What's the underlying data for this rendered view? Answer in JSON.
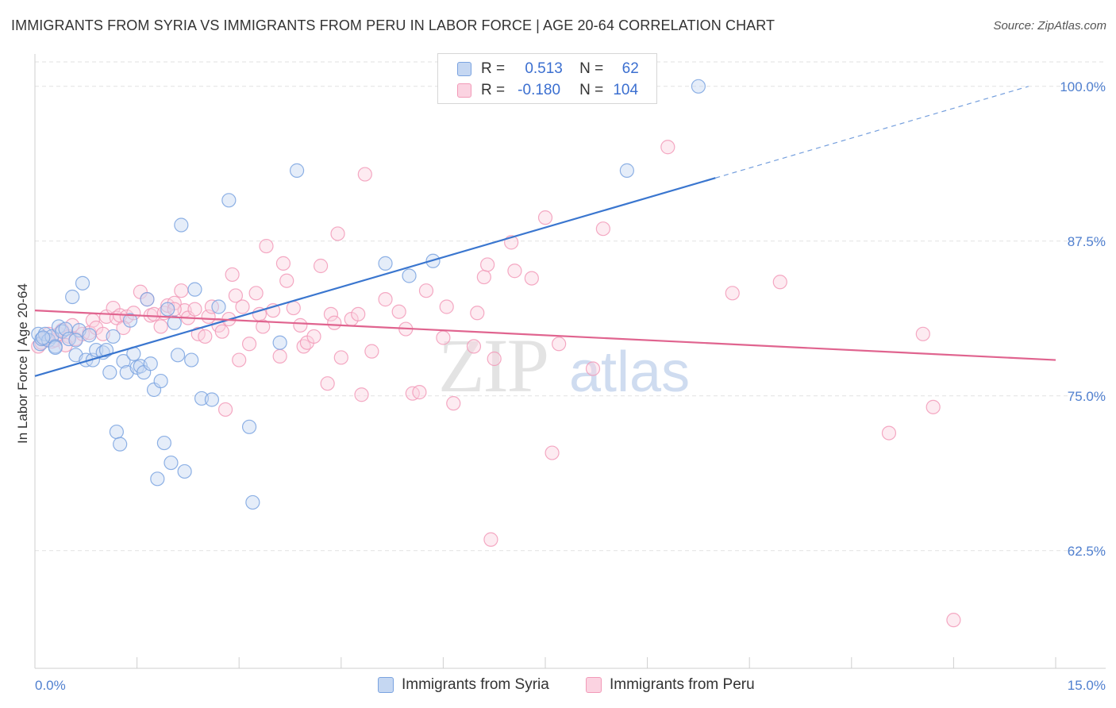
{
  "header": {
    "title": "IMMIGRANTS FROM SYRIA VS IMMIGRANTS FROM PERU IN LABOR FORCE | AGE 20-64 CORRELATION CHART",
    "source": "Source: ZipAtlas.com"
  },
  "watermark": {
    "zip": "ZIP",
    "atlas": "atlas"
  },
  "legend": {
    "syria": {
      "r_label": "R =",
      "r_value": "0.513",
      "n_label": "N =",
      "n_value": "62",
      "color": "#7aa3e0"
    },
    "peru": {
      "r_label": "R =",
      "r_value": "-0.180",
      "n_label": "N =",
      "n_value": "104",
      "color": "#f29ab8"
    }
  },
  "bottom_legend": {
    "syria_label": "Immigrants from Syria",
    "peru_label": "Immigrants from Peru"
  },
  "chart_data": {
    "type": "scatter",
    "ylabel": "In Labor Force | Age 20-64",
    "xlim": [
      0,
      15
    ],
    "ylim": [
      53,
      103
    ],
    "x_tick_labels": [
      "0.0%",
      "15.0%"
    ],
    "y_ticks": [
      62.5,
      75.0,
      87.5,
      100.0
    ],
    "y_tick_labels": [
      "62.5%",
      "75.0%",
      "87.5%",
      "100.0%"
    ],
    "grid": true,
    "legend_position": "top-center",
    "series": [
      {
        "name": "Immigrants from Syria",
        "color": "#7aa3e0",
        "line_color": "#3a76cf",
        "trend": {
          "x0": 0,
          "y0": 76.6,
          "x1": 10.0,
          "y1": 92.6,
          "x_ext": 14.6,
          "y_ext": 100.0
        },
        "points": [
          [
            0.05,
            80.0
          ],
          [
            0.08,
            79.2
          ],
          [
            0.1,
            79.6
          ],
          [
            0.15,
            80.0
          ],
          [
            0.2,
            79.5
          ],
          [
            0.25,
            79.8
          ],
          [
            0.3,
            79.0
          ],
          [
            0.35,
            80.6
          ],
          [
            0.4,
            80.2
          ],
          [
            0.45,
            80.4
          ],
          [
            0.5,
            79.6
          ],
          [
            0.55,
            83.0
          ],
          [
            0.6,
            78.3
          ],
          [
            0.65,
            80.3
          ],
          [
            0.7,
            84.1
          ],
          [
            0.75,
            77.9
          ],
          [
            0.8,
            79.9
          ],
          [
            0.85,
            77.9
          ],
          [
            0.9,
            78.7
          ],
          [
            1.0,
            78.5
          ],
          [
            1.05,
            78.7
          ],
          [
            1.15,
            79.8
          ],
          [
            1.2,
            72.1
          ],
          [
            1.25,
            71.1
          ],
          [
            1.3,
            77.8
          ],
          [
            1.35,
            76.9
          ],
          [
            1.4,
            81.1
          ],
          [
            1.45,
            78.4
          ],
          [
            1.5,
            77.3
          ],
          [
            1.55,
            77.4
          ],
          [
            1.6,
            76.9
          ],
          [
            1.65,
            82.8
          ],
          [
            1.7,
            77.6
          ],
          [
            1.75,
            75.5
          ],
          [
            1.8,
            68.3
          ],
          [
            1.85,
            76.2
          ],
          [
            1.9,
            71.2
          ],
          [
            1.95,
            82.0
          ],
          [
            2.0,
            69.6
          ],
          [
            2.05,
            80.9
          ],
          [
            2.1,
            78.3
          ],
          [
            2.15,
            88.8
          ],
          [
            2.2,
            68.9
          ],
          [
            2.3,
            77.9
          ],
          [
            2.35,
            83.6
          ],
          [
            2.45,
            74.8
          ],
          [
            2.6,
            74.7
          ],
          [
            2.7,
            82.2
          ],
          [
            2.85,
            90.8
          ],
          [
            3.15,
            72.5
          ],
          [
            3.2,
            66.4
          ],
          [
            3.6,
            79.3
          ],
          [
            3.85,
            93.2
          ],
          [
            5.15,
            85.7
          ],
          [
            5.5,
            84.7
          ],
          [
            5.85,
            85.9
          ],
          [
            8.7,
            93.2
          ],
          [
            9.75,
            100.0
          ],
          [
            0.12,
            79.7
          ],
          [
            0.3,
            78.9
          ],
          [
            0.6,
            79.5
          ],
          [
            1.1,
            76.9
          ]
        ]
      },
      {
        "name": "Immigrants from Peru",
        "color": "#f29ab8",
        "line_color": "#e0648f",
        "trend": {
          "x0": 0,
          "y0": 81.9,
          "x1": 15.0,
          "y1": 77.9
        },
        "points": [
          [
            0.05,
            79.0
          ],
          [
            0.1,
            79.3
          ],
          [
            0.15,
            79.6
          ],
          [
            0.2,
            80.0
          ],
          [
            0.25,
            79.4
          ],
          [
            0.3,
            79.5
          ],
          [
            0.35,
            80.0
          ],
          [
            0.4,
            80.3
          ],
          [
            0.5,
            79.8
          ],
          [
            0.55,
            80.7
          ],
          [
            0.6,
            79.6
          ],
          [
            0.7,
            80.0
          ],
          [
            0.8,
            80.1
          ],
          [
            0.85,
            81.1
          ],
          [
            0.9,
            80.5
          ],
          [
            1.0,
            80.0
          ],
          [
            1.05,
            81.4
          ],
          [
            1.15,
            82.1
          ],
          [
            1.2,
            81.3
          ],
          [
            1.25,
            81.5
          ],
          [
            1.35,
            81.4
          ],
          [
            1.45,
            81.7
          ],
          [
            1.55,
            83.4
          ],
          [
            1.65,
            82.8
          ],
          [
            1.7,
            81.5
          ],
          [
            1.75,
            81.6
          ],
          [
            1.85,
            80.6
          ],
          [
            1.9,
            81.7
          ],
          [
            1.95,
            82.3
          ],
          [
            2.05,
            82.5
          ],
          [
            2.15,
            83.5
          ],
          [
            2.2,
            81.9
          ],
          [
            2.25,
            81.3
          ],
          [
            2.35,
            82.0
          ],
          [
            2.4,
            80.0
          ],
          [
            2.5,
            79.8
          ],
          [
            2.55,
            81.4
          ],
          [
            2.6,
            82.2
          ],
          [
            2.7,
            80.7
          ],
          [
            2.75,
            80.2
          ],
          [
            2.8,
            73.9
          ],
          [
            2.85,
            81.2
          ],
          [
            2.9,
            84.8
          ],
          [
            2.95,
            83.1
          ],
          [
            3.0,
            77.9
          ],
          [
            3.05,
            82.2
          ],
          [
            3.15,
            79.2
          ],
          [
            3.25,
            83.3
          ],
          [
            3.3,
            81.6
          ],
          [
            3.35,
            80.6
          ],
          [
            3.4,
            87.1
          ],
          [
            3.5,
            81.9
          ],
          [
            3.6,
            78.2
          ],
          [
            3.65,
            85.7
          ],
          [
            3.7,
            84.3
          ],
          [
            3.8,
            82.1
          ],
          [
            3.9,
            80.7
          ],
          [
            3.95,
            79.0
          ],
          [
            4.0,
            79.3
          ],
          [
            4.1,
            79.8
          ],
          [
            4.2,
            85.5
          ],
          [
            4.3,
            76.0
          ],
          [
            4.35,
            81.6
          ],
          [
            4.4,
            80.9
          ],
          [
            4.45,
            88.1
          ],
          [
            4.5,
            78.1
          ],
          [
            4.65,
            81.2
          ],
          [
            4.75,
            81.6
          ],
          [
            4.8,
            75.1
          ],
          [
            4.85,
            92.9
          ],
          [
            4.95,
            78.6
          ],
          [
            5.15,
            82.8
          ],
          [
            5.35,
            81.8
          ],
          [
            5.45,
            80.4
          ],
          [
            5.55,
            75.2
          ],
          [
            5.65,
            75.3
          ],
          [
            5.75,
            83.5
          ],
          [
            6.0,
            79.7
          ],
          [
            6.05,
            82.2
          ],
          [
            6.15,
            74.4
          ],
          [
            6.45,
            79.0
          ],
          [
            6.5,
            81.7
          ],
          [
            6.6,
            84.6
          ],
          [
            6.65,
            85.6
          ],
          [
            6.7,
            63.4
          ],
          [
            6.75,
            78.0
          ],
          [
            7.0,
            87.4
          ],
          [
            7.05,
            85.1
          ],
          [
            7.3,
            84.5
          ],
          [
            7.5,
            89.4
          ],
          [
            7.6,
            70.4
          ],
          [
            7.7,
            79.2
          ],
          [
            8.2,
            77.2
          ],
          [
            8.35,
            88.5
          ],
          [
            9.3,
            95.1
          ],
          [
            10.25,
            83.3
          ],
          [
            10.95,
            84.2
          ],
          [
            12.55,
            72.0
          ],
          [
            13.05,
            80.0
          ],
          [
            13.2,
            74.1
          ],
          [
            13.5,
            56.9
          ],
          [
            2.05,
            82.0
          ],
          [
            1.3,
            80.5
          ],
          [
            0.45,
            79.1
          ]
        ]
      }
    ]
  }
}
